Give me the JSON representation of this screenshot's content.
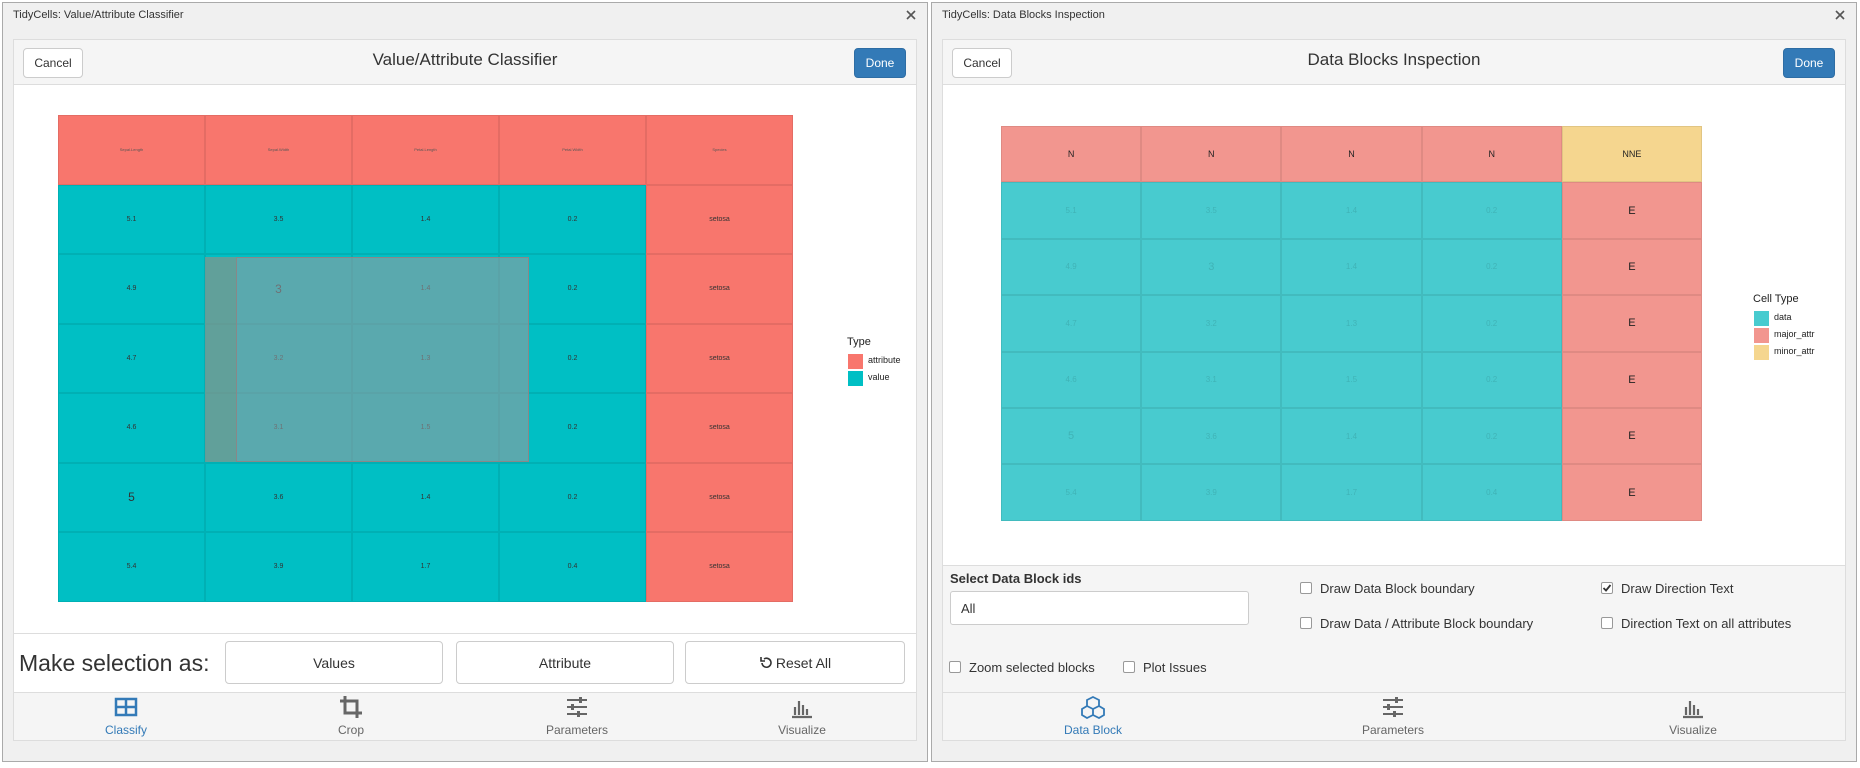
{
  "left_window": {
    "title": "TidyCells: Value/Attribute Classifier",
    "cancel": "Cancel",
    "heading": "Value/Attribute Classifier",
    "done": "Done",
    "grid": {
      "header": [
        "Sepal.Length",
        "Sepal.Width",
        "Petal.Length",
        "Petal.Width",
        "Species"
      ],
      "rows": [
        [
          "5.1",
          "3.5",
          "1.4",
          "0.2",
          "setosa"
        ],
        [
          "4.9",
          "3",
          "1.4",
          "0.2",
          "setosa"
        ],
        [
          "4.7",
          "3.2",
          "1.3",
          "0.2",
          "setosa"
        ],
        [
          "4.6",
          "3.1",
          "1.5",
          "0.2",
          "setosa"
        ],
        [
          "5",
          "3.6",
          "1.4",
          "0.2",
          "setosa"
        ],
        [
          "5.4",
          "3.9",
          "1.7",
          "0.4",
          "setosa"
        ]
      ]
    },
    "legend": {
      "title": "Type",
      "items": [
        {
          "label": "attribute",
          "color": "#f8766d"
        },
        {
          "label": "value",
          "color": "#00bfc4"
        }
      ]
    },
    "selection_label": "Make selection as:",
    "buttons": [
      "Values",
      "Attribute",
      "Reset All"
    ],
    "tabs": [
      "Classify",
      "Crop",
      "Parameters",
      "Visualize"
    ]
  },
  "right_window": {
    "title": "TidyCells: Data Blocks Inspection",
    "cancel": "Cancel",
    "heading": "Data Blocks Inspection",
    "done": "Done",
    "grid": {
      "header": [
        "N",
        "N",
        "N",
        "N",
        "NNE"
      ],
      "rows": [
        [
          "5.1",
          "3.5",
          "1.4",
          "0.2",
          "E"
        ],
        [
          "4.9",
          "3",
          "1.4",
          "0.2",
          "E"
        ],
        [
          "4.7",
          "3.2",
          "1.3",
          "0.2",
          "E"
        ],
        [
          "4.6",
          "3.1",
          "1.5",
          "0.2",
          "E"
        ],
        [
          "5",
          "3.6",
          "1.4",
          "0.2",
          "E"
        ],
        [
          "5.4",
          "3.9",
          "1.7",
          "0.4",
          "E"
        ]
      ]
    },
    "legend": {
      "title": "Cell Type",
      "items": [
        {
          "label": "data",
          "color": "#48cbcf"
        },
        {
          "label": "major_attr",
          "color": "#f2968f"
        },
        {
          "label": "minor_attr",
          "color": "#f5d68f"
        }
      ]
    },
    "select_label": "Select Data Block ids",
    "select_value": "All",
    "checkboxes": [
      {
        "label": "Draw Data Block boundary",
        "checked": false
      },
      {
        "label": "Draw Data / Attribute Block boundary",
        "checked": false
      },
      {
        "label": "Draw Direction Text",
        "checked": true
      },
      {
        "label": "Direction Text on all attributes",
        "checked": false
      },
      {
        "label": "Zoom selected blocks",
        "checked": false
      },
      {
        "label": "Plot Issues",
        "checked": false
      }
    ],
    "tabs": [
      "Data Block",
      "Parameters",
      "Visualize"
    ]
  }
}
